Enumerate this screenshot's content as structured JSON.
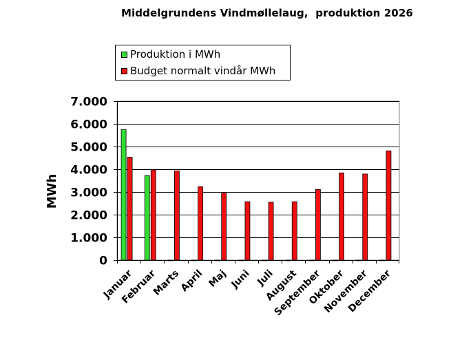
{
  "chart_data": {
    "type": "bar",
    "title": "Middelgrundens Vindmøllelaug,  produktion 2026",
    "ylabel": "MWh",
    "xlabel": "",
    "ylim": [
      0,
      7000
    ],
    "yticks": [
      0,
      1000,
      2000,
      3000,
      4000,
      5000,
      6000,
      7000
    ],
    "ytick_labels": [
      "0",
      "1.000",
      "2.000",
      "3.000",
      "4.000",
      "5.000",
      "6.000",
      "7.000"
    ],
    "grid": true,
    "legend_position": "top",
    "categories": [
      "Januar",
      "Februar",
      "Marts",
      "April",
      "Maj",
      "Juni",
      "Juli",
      "August",
      "September",
      "Oktober",
      "November",
      "December"
    ],
    "series": [
      {
        "name": "Produktion i MWh",
        "color": "#33dd33",
        "values": [
          5750,
          3720,
          0,
          0,
          0,
          0,
          0,
          0,
          0,
          0,
          0,
          0
        ]
      },
      {
        "name": "Budget normalt vindår MWh",
        "color": "#ee1111",
        "values": [
          4530,
          3970,
          3930,
          3230,
          2970,
          2570,
          2550,
          2570,
          3110,
          3840,
          3790,
          4810
        ]
      }
    ]
  }
}
